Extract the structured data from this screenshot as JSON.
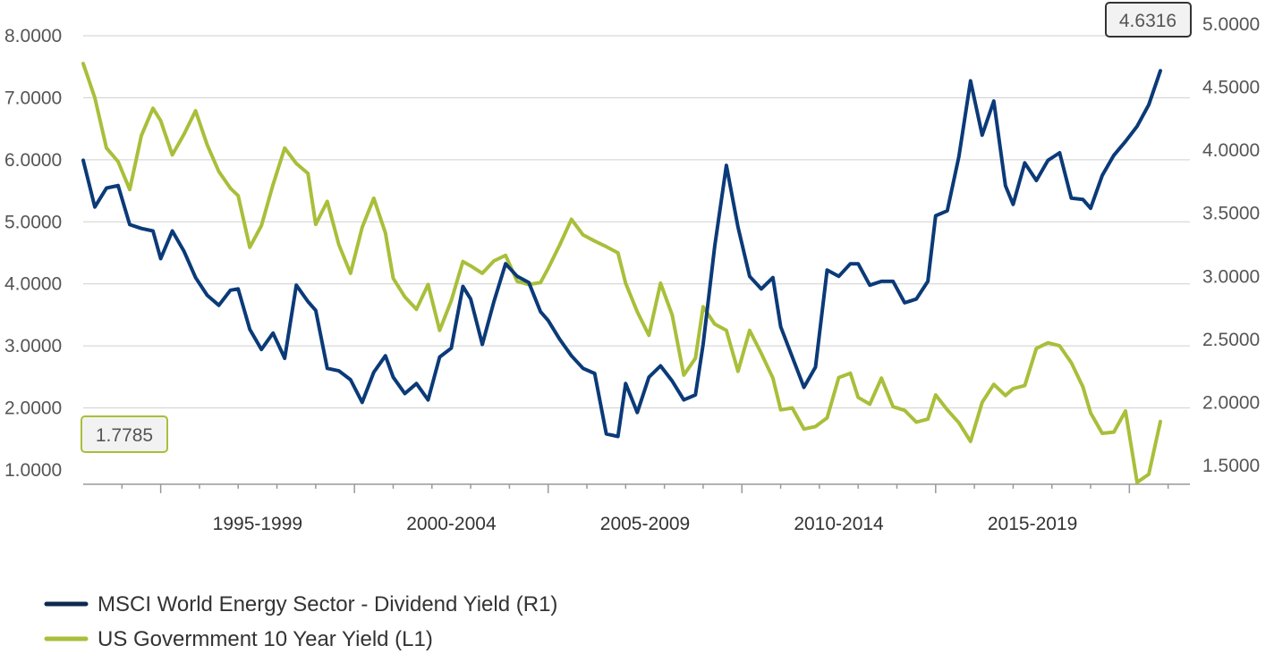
{
  "chart_data": {
    "type": "line",
    "title": "",
    "x_tick_labels": [
      "1995-1999",
      "2000-2004",
      "2005-2009",
      "2010-2014",
      "2015-2019"
    ],
    "y_left": {
      "min": 1.0,
      "max": 8.0,
      "ticks": [
        "1.0000",
        "2.0000",
        "3.0000",
        "4.0000",
        "5.0000",
        "6.0000",
        "7.0000",
        "8.0000"
      ]
    },
    "y_right": {
      "min": 1.5,
      "max": 5.0,
      "ticks": [
        "1.5000",
        "2.0000",
        "2.5000",
        "3.0000",
        "3.5000",
        "4.0000",
        "4.5000",
        "5.0000"
      ]
    },
    "grid": true,
    "legend_position": "bottom-left",
    "callouts": {
      "left": "1.7785",
      "right": "4.6316"
    },
    "series": [
      {
        "name": "MSCI World Energy Sector - Dividend Yield (R1)",
        "axis": "right",
        "color": "#0b3a78",
        "x": [
          1993.0,
          1993.3,
          1993.6,
          1993.9,
          1994.2,
          1994.5,
          1994.8,
          1995.0,
          1995.3,
          1995.6,
          1995.9,
          1996.2,
          1996.5,
          1996.8,
          1997.0,
          1997.3,
          1997.6,
          1997.9,
          1998.2,
          1998.5,
          1998.8,
          1999.0,
          1999.3,
          1999.6,
          1999.9,
          2000.2,
          2000.5,
          2000.8,
          2001.0,
          2001.3,
          2001.6,
          2001.9,
          2002.2,
          2002.5,
          2002.8,
          2003.0,
          2003.3,
          2003.6,
          2003.9,
          2004.2,
          2004.5,
          2004.8,
          2005.0,
          2005.3,
          2005.6,
          2005.9,
          2006.2,
          2006.5,
          2006.8,
          2007.0,
          2007.3,
          2007.6,
          2007.9,
          2008.2,
          2008.5,
          2008.8,
          2009.0,
          2009.3,
          2009.6,
          2009.9,
          2010.2,
          2010.5,
          2010.8,
          2011.0,
          2011.3,
          2011.6,
          2011.9,
          2012.2,
          2012.5,
          2012.8,
          2013.0,
          2013.3,
          2013.6,
          2013.9,
          2014.2,
          2014.5,
          2014.8,
          2015.0,
          2015.3,
          2015.6,
          2015.9,
          2016.2,
          2016.5,
          2016.8,
          2017.0,
          2017.3,
          2017.6,
          2017.9,
          2018.2,
          2018.5,
          2018.8,
          2019.0,
          2019.3,
          2019.6,
          2019.9,
          2020.2,
          2020.5,
          2020.8
        ],
        "y": [
          3.92,
          3.55,
          3.7,
          3.72,
          3.41,
          3.38,
          3.36,
          3.14,
          3.36,
          3.2,
          2.99,
          2.85,
          2.77,
          2.89,
          2.9,
          2.58,
          2.42,
          2.55,
          2.35,
          2.93,
          2.8,
          2.73,
          2.27,
          2.25,
          2.18,
          2.0,
          2.24,
          2.37,
          2.2,
          2.07,
          2.15,
          2.02,
          2.36,
          2.43,
          2.92,
          2.82,
          2.46,
          2.8,
          3.1,
          3.0,
          2.95,
          2.72,
          2.65,
          2.5,
          2.37,
          2.27,
          2.23,
          1.75,
          1.73,
          2.15,
          1.92,
          2.2,
          2.29,
          2.17,
          2.02,
          2.06,
          2.46,
          3.24,
          3.88,
          3.39,
          3.0,
          2.9,
          2.99,
          2.6,
          2.36,
          2.12,
          2.28,
          3.05,
          3.0,
          3.1,
          3.1,
          2.93,
          2.96,
          2.96,
          2.79,
          2.82,
          2.96,
          3.48,
          3.52,
          3.95,
          4.55,
          4.12,
          4.39,
          3.72,
          3.57,
          3.9,
          3.76,
          3.92,
          3.98,
          3.62,
          3.61,
          3.54,
          3.8,
          3.96,
          4.07,
          4.19,
          4.36,
          4.63
        ]
      },
      {
        "name": "US Govermment 10 Year Yield (L1)",
        "axis": "left",
        "color": "#a8bf3a",
        "x": [
          1993.0,
          1993.3,
          1993.6,
          1993.9,
          1994.2,
          1994.5,
          1994.8,
          1995.0,
          1995.3,
          1995.6,
          1995.9,
          1996.2,
          1996.5,
          1996.8,
          1997.0,
          1997.3,
          1997.6,
          1997.9,
          1998.2,
          1998.5,
          1998.8,
          1999.0,
          1999.3,
          1999.6,
          1999.9,
          2000.2,
          2000.5,
          2000.8,
          2001.0,
          2001.3,
          2001.6,
          2001.9,
          2002.2,
          2002.5,
          2002.8,
          2003.0,
          2003.3,
          2003.6,
          2003.9,
          2004.2,
          2004.5,
          2004.8,
          2005.0,
          2005.3,
          2005.6,
          2005.9,
          2006.2,
          2006.5,
          2006.8,
          2007.0,
          2007.3,
          2007.6,
          2007.9,
          2008.2,
          2008.5,
          2008.8,
          2009.0,
          2009.3,
          2009.6,
          2009.9,
          2010.2,
          2010.5,
          2010.8,
          2011.0,
          2011.3,
          2011.6,
          2011.9,
          2012.2,
          2012.5,
          2012.8,
          2013.0,
          2013.3,
          2013.6,
          2013.9,
          2014.2,
          2014.5,
          2014.8,
          2015.0,
          2015.3,
          2015.6,
          2015.9,
          2016.2,
          2016.5,
          2016.8,
          2017.0,
          2017.3,
          2017.6,
          2017.9,
          2018.2,
          2018.5,
          2018.8,
          2019.0,
          2019.3,
          2019.6,
          2019.9,
          2020.2,
          2020.5,
          2020.8
        ],
        "y": [
          7.55,
          7.0,
          6.19,
          5.97,
          5.52,
          6.39,
          6.83,
          6.63,
          6.08,
          6.41,
          6.79,
          6.24,
          5.81,
          5.54,
          5.42,
          4.59,
          4.94,
          5.6,
          6.19,
          5.94,
          5.78,
          4.96,
          5.33,
          4.63,
          4.17,
          4.91,
          5.38,
          4.82,
          4.09,
          3.79,
          3.59,
          3.99,
          3.25,
          3.73,
          4.36,
          4.29,
          4.17,
          4.37,
          4.46,
          4.04,
          3.99,
          4.02,
          4.25,
          4.63,
          5.04,
          4.79,
          4.69,
          4.6,
          4.5,
          4.01,
          3.55,
          3.17,
          4.01,
          3.5,
          2.53,
          2.8,
          3.63,
          3.35,
          3.25,
          2.59,
          3.25,
          2.88,
          2.48,
          1.97,
          2.0,
          1.66,
          1.7,
          1.84,
          2.49,
          2.56,
          2.17,
          2.06,
          2.48,
          2.02,
          1.96,
          1.77,
          1.82,
          2.21,
          1.97,
          1.76,
          1.46,
          2.09,
          2.38,
          2.2,
          2.31,
          2.36,
          2.96,
          3.05,
          3.0,
          2.73,
          2.34,
          1.92,
          1.59,
          1.61,
          1.95,
          0.8,
          0.93,
          1.78
        ]
      }
    ]
  }
}
